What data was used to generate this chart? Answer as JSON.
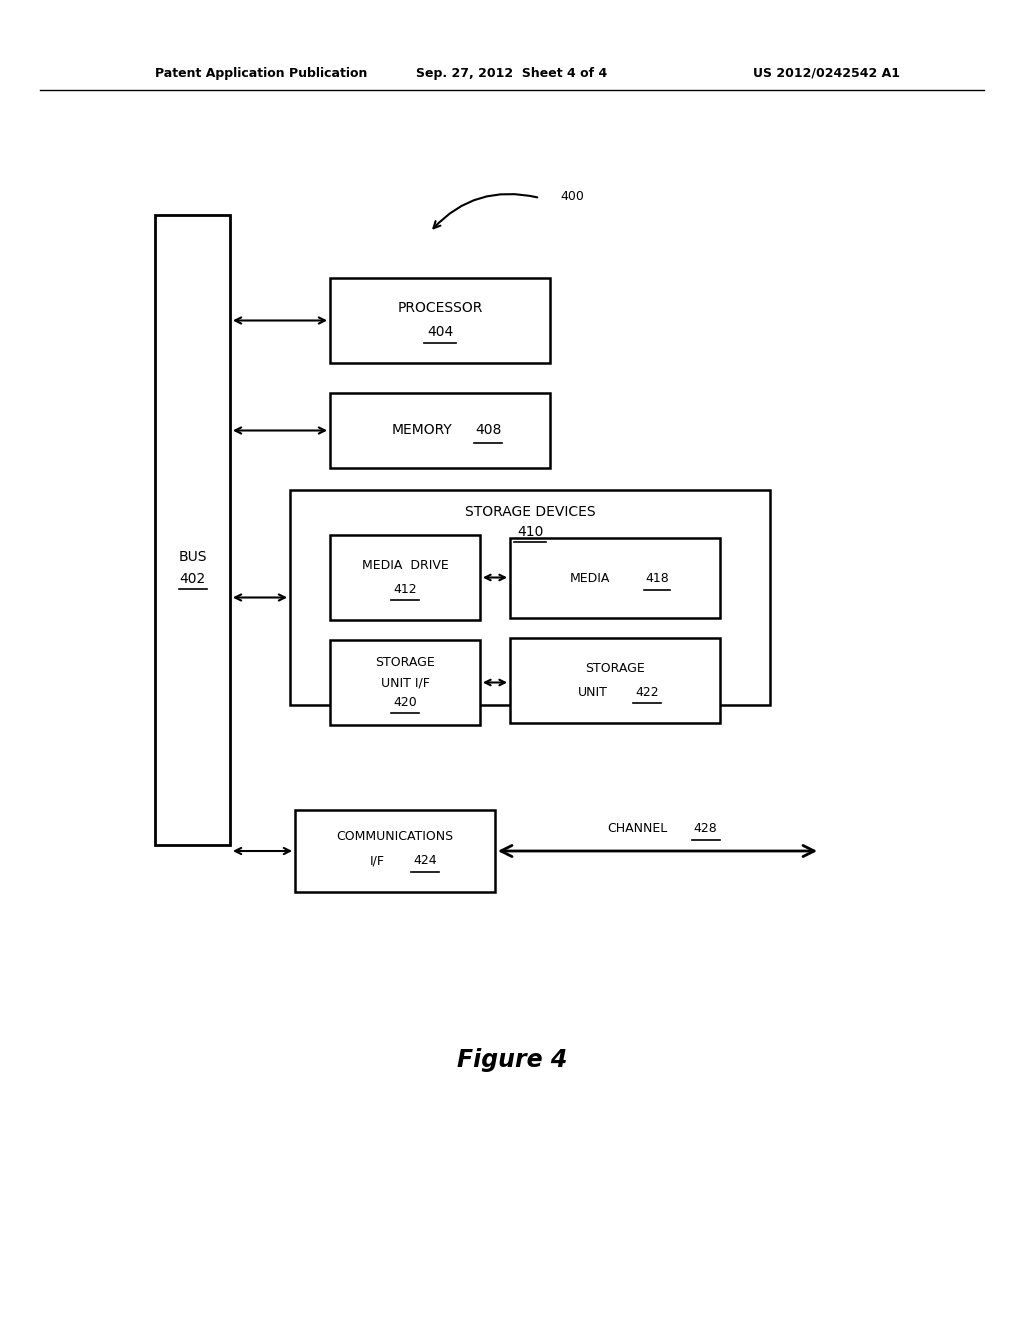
{
  "bg_color": "#ffffff",
  "header_left": "Patent Application Publication",
  "header_center": "Sep. 27, 2012  Sheet 4 of 4",
  "header_right": "US 2012/0242542 A1",
  "figure_label": "Figure 4",
  "ref_400": "400",
  "bus_label": "BUS",
  "bus_num": "402",
  "processor_label": "PROCESSOR",
  "processor_num": "404",
  "memory_label": "MEMORY",
  "memory_num": "408",
  "storage_group_label": "STORAGE DEVICES",
  "storage_group_num": "410",
  "media_drive_label": "MEDIA  DRIVE",
  "media_drive_num": "412",
  "media_label": "MEDIA",
  "media_num": "418",
  "storage_unit_if_label1": "STORAGE",
  "storage_unit_if_label2": "UNIT I/F",
  "storage_unit_if_num": "420",
  "storage_unit_label1": "STORAGE",
  "storage_unit_label2": "UNIT",
  "storage_unit_num": "422",
  "comms_label1": "COMMUNICATIONS",
  "comms_label2": "I/F",
  "comms_num": "424",
  "channel_label": "CHANNEL",
  "channel_num": "428"
}
